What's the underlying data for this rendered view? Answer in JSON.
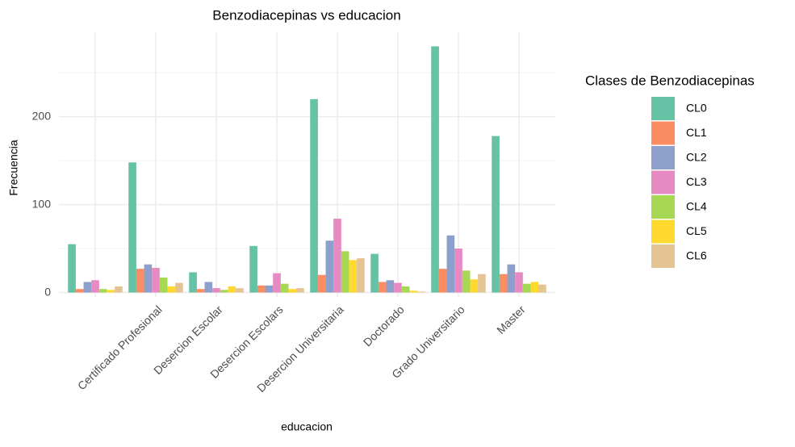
{
  "chart_data": {
    "type": "bar",
    "title": "Benzodiacepinas vs educacion",
    "x_label": "educacion",
    "y_label": "Frecuencia",
    "categories": [
      null,
      "Certificado Profesional",
      "Desercion Escolar",
      "Desercion Escolars",
      "Desercion Universitaria",
      "Doctorado",
      "Grado Universitario",
      "Master"
    ],
    "legend_title": "Clases de Benzodiacepinas",
    "series": [
      {
        "name": "CL0",
        "color": "#66c2a5",
        "values": [
          55,
          148,
          23,
          53,
          220,
          44,
          280,
          178
        ]
      },
      {
        "name": "CL1",
        "color": "#fc8d62",
        "values": [
          4,
          27,
          4,
          8,
          20,
          12,
          27,
          21
        ]
      },
      {
        "name": "CL2",
        "color": "#8da0cb",
        "values": [
          12,
          32,
          12,
          8,
          59,
          14,
          65,
          32
        ]
      },
      {
        "name": "CL3",
        "color": "#e78ac3",
        "values": [
          14,
          28,
          5,
          22,
          84,
          11,
          50,
          23
        ]
      },
      {
        "name": "CL4",
        "color": "#a6d854",
        "values": [
          4,
          17,
          3,
          10,
          47,
          7,
          25,
          10
        ]
      },
      {
        "name": "CL5",
        "color": "#ffd92f",
        "values": [
          3,
          7,
          7,
          4,
          37,
          2,
          15,
          12
        ]
      },
      {
        "name": "CL6",
        "color": "#e5c494",
        "values": [
          7,
          11,
          5,
          5,
          39,
          1,
          21,
          9
        ]
      }
    ],
    "ylim": [
      -5,
      296
    ],
    "yticks": [
      0,
      100,
      200
    ],
    "y_minor_ticks": [
      50,
      150,
      250
    ],
    "grid": true,
    "legend": "right"
  }
}
